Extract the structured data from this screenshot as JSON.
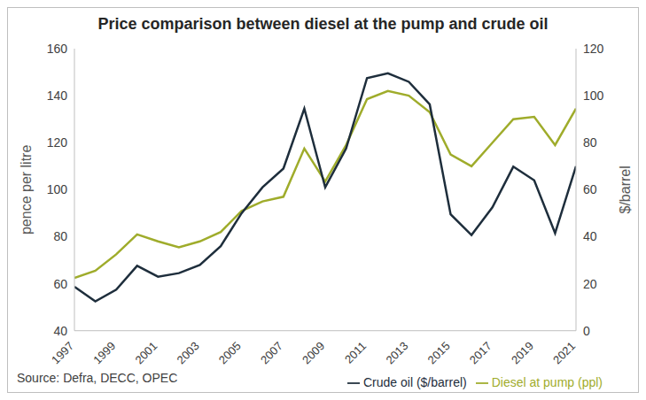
{
  "chart_data": {
    "type": "line",
    "title": "Price comparison between diesel at the pump and crude oil",
    "source": "Source: Defra, DECC, OPEC",
    "x": [
      1997,
      1998,
      1999,
      2000,
      2001,
      2002,
      2003,
      2004,
      2005,
      2006,
      2007,
      2008,
      2009,
      2010,
      2011,
      2012,
      2013,
      2014,
      2015,
      2016,
      2017,
      2018,
      2019,
      2020,
      2021
    ],
    "xlim": [
      1997,
      2021
    ],
    "xticks": [
      1997,
      1999,
      2001,
      2003,
      2005,
      2007,
      2009,
      2011,
      2013,
      2015,
      2017,
      2019,
      2021
    ],
    "y_label": "pence per litre",
    "ylim": [
      40,
      160
    ],
    "yticks": [
      40,
      60,
      80,
      100,
      120,
      140,
      160
    ],
    "y2_label": "$/barrel",
    "y2lim": [
      0,
      120
    ],
    "y2ticks": [
      0,
      20,
      40,
      60,
      80,
      100,
      120
    ],
    "grid": false,
    "legend": "bottom right",
    "series": [
      {
        "name": "Diesel at pump (ppl)",
        "color": "#9fac2b",
        "values": [
          62.5,
          65.5,
          72.5,
          81,
          78,
          75.5,
          78,
          82,
          91,
          95,
          97,
          117.5,
          103.5,
          119,
          138.5,
          142,
          140,
          133,
          115,
          110,
          120,
          130,
          131,
          119,
          134.5
        ]
      },
      {
        "name": "Crude oil ($/barrel)",
        "color": "#1e2e3c",
        "axis": "y2",
        "values": [
          18.7,
          12.5,
          17.5,
          27.6,
          23,
          24.5,
          28,
          36,
          50,
          61,
          69,
          94.5,
          61,
          77.5,
          107.5,
          109.5,
          105.9,
          96.3,
          49.5,
          40.7,
          52.5,
          69.8,
          64,
          41.5,
          70
        ]
      }
    ]
  }
}
